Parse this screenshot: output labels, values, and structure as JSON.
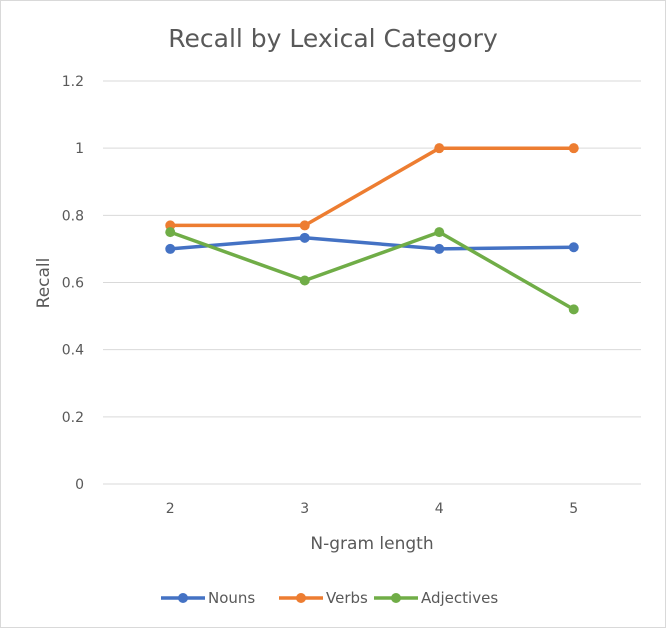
{
  "chart_data": {
    "type": "line",
    "title": "Recall by Lexical Category",
    "xlabel": "N-gram length",
    "ylabel": "Recall",
    "categories": [
      "2",
      "3",
      "4",
      "5"
    ],
    "ylim": [
      0,
      1.2
    ],
    "y_ticks": [
      "0",
      "0.2",
      "0.4",
      "0.6",
      "0.8",
      "1",
      "1.2"
    ],
    "grid": true,
    "legend_position": "bottom",
    "series": [
      {
        "name": "Nouns",
        "color": "#4472c4",
        "values": [
          0.7,
          0.733,
          0.7,
          0.705
        ]
      },
      {
        "name": "Verbs",
        "color": "#ed7d31",
        "values": [
          0.77,
          0.77,
          1.0,
          1.0
        ]
      },
      {
        "name": "Adjectives",
        "color": "#70ad47",
        "values": [
          0.75,
          0.606,
          0.75,
          0.52
        ]
      }
    ]
  }
}
